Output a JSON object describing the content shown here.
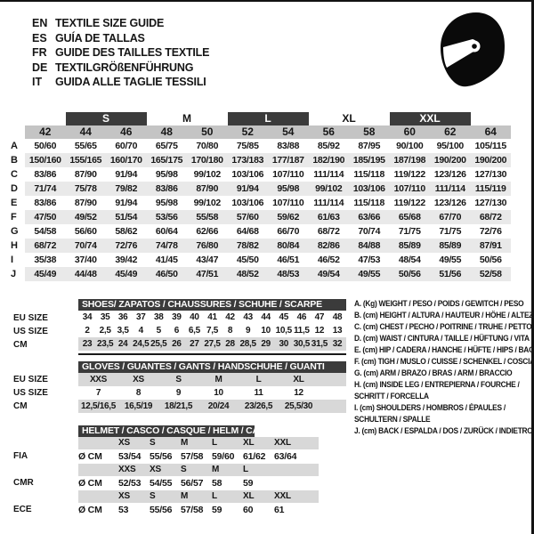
{
  "header": {
    "languages": [
      {
        "code": "EN",
        "title": "TEXTILE SIZE GUIDE"
      },
      {
        "code": "ES",
        "title": "GUÍA DE TALLAS"
      },
      {
        "code": "FR",
        "title": "GUIDE DES TAILLES TEXTILE"
      },
      {
        "code": "DE",
        "title": "TEXTILGRÖßENFÜHRUNG"
      },
      {
        "code": "IT",
        "title": "GUIDA ALLE TAGLIE TESSILI"
      }
    ]
  },
  "main_table": {
    "groups": [
      {
        "label": "S",
        "highlight": true,
        "sizes": [
          "44",
          "46"
        ]
      },
      {
        "label": "M",
        "highlight": false,
        "sizes": [
          "48",
          "50"
        ]
      },
      {
        "label": "L",
        "highlight": true,
        "sizes": [
          "52",
          "54"
        ]
      },
      {
        "label": "XL",
        "highlight": false,
        "sizes": [
          "56",
          "58"
        ]
      },
      {
        "label": "XXL",
        "highlight": true,
        "sizes": [
          "60",
          "62"
        ]
      }
    ],
    "sizes": [
      "42",
      "44",
      "46",
      "48",
      "50",
      "52",
      "54",
      "56",
      "58",
      "60",
      "62",
      "64"
    ],
    "rows": [
      {
        "letter": "A",
        "values": [
          "50/60",
          "55/65",
          "60/70",
          "65/75",
          "70/80",
          "75/85",
          "83/88",
          "85/92",
          "87/95",
          "90/100",
          "95/100",
          "105/115"
        ]
      },
      {
        "letter": "B",
        "values": [
          "150/160",
          "155/165",
          "160/170",
          "165/175",
          "170/180",
          "173/183",
          "177/187",
          "182/190",
          "185/195",
          "187/198",
          "190/200",
          "190/200"
        ]
      },
      {
        "letter": "C",
        "values": [
          "83/86",
          "87/90",
          "91/94",
          "95/98",
          "99/102",
          "103/106",
          "107/110",
          "111/114",
          "115/118",
          "119/122",
          "123/126",
          "127/130"
        ]
      },
      {
        "letter": "D",
        "values": [
          "71/74",
          "75/78",
          "79/82",
          "83/86",
          "87/90",
          "91/94",
          "95/98",
          "99/102",
          "103/106",
          "107/110",
          "111/114",
          "115/119"
        ]
      },
      {
        "letter": "E",
        "values": [
          "83/86",
          "87/90",
          "91/94",
          "95/98",
          "99/102",
          "103/106",
          "107/110",
          "111/114",
          "115/118",
          "119/122",
          "123/126",
          "127/130"
        ]
      },
      {
        "letter": "F",
        "values": [
          "47/50",
          "49/52",
          "51/54",
          "53/56",
          "55/58",
          "57/60",
          "59/62",
          "61/63",
          "63/66",
          "65/68",
          "67/70",
          "68/72"
        ]
      },
      {
        "letter": "G",
        "values": [
          "54/58",
          "56/60",
          "58/62",
          "60/64",
          "62/66",
          "64/68",
          "66/70",
          "68/72",
          "70/74",
          "71/75",
          "71/75",
          "72/76"
        ]
      },
      {
        "letter": "H",
        "values": [
          "68/72",
          "70/74",
          "72/76",
          "74/78",
          "76/80",
          "78/82",
          "80/84",
          "82/86",
          "84/88",
          "85/89",
          "85/89",
          "87/91"
        ]
      },
      {
        "letter": "I",
        "values": [
          "35/38",
          "37/40",
          "39/42",
          "41/45",
          "43/47",
          "45/50",
          "46/51",
          "46/52",
          "47/53",
          "48/54",
          "49/55",
          "50/56"
        ]
      },
      {
        "letter": "J",
        "values": [
          "45/49",
          "44/48",
          "45/49",
          "46/50",
          "47/51",
          "48/52",
          "48/53",
          "49/54",
          "49/55",
          "50/56",
          "51/56",
          "52/58"
        ]
      }
    ]
  },
  "shoes_table": {
    "title": "SHOES/ ZAPATOS / CHAUSSURES / SCHUHE / SCARPE",
    "rows": [
      {
        "label": "EU SIZE",
        "values": [
          "34",
          "35",
          "36",
          "37",
          "38",
          "39",
          "40",
          "41",
          "42",
          "43",
          "44",
          "45",
          "46",
          "47",
          "48"
        ]
      },
      {
        "label": "US SIZE",
        "values": [
          "2",
          "2,5",
          "3,5",
          "4",
          "5",
          "6",
          "6,5",
          "7,5",
          "8",
          "9",
          "10",
          "10,5",
          "11,5",
          "12",
          "13"
        ]
      },
      {
        "label": "CM",
        "values": [
          "23",
          "23,5",
          "24",
          "24,5",
          "25,5",
          "26",
          "27",
          "27,5",
          "28",
          "28,5",
          "29",
          "30",
          "30,5",
          "31,5",
          "32"
        ]
      }
    ]
  },
  "gloves_table": {
    "title": "GLOVES / GUANTES / GANTS / HANDSCHUHE / GUANTI",
    "rows": [
      {
        "label": "EU SIZE",
        "values": [
          "XXS",
          "XS",
          "S",
          "M",
          "L",
          "XL"
        ]
      },
      {
        "label": "US SIZE",
        "values": [
          "7",
          "8",
          "9",
          "10",
          "11",
          "12"
        ]
      },
      {
        "label": "CM",
        "values": [
          "12,5/16,5",
          "16,5/19",
          "18/21,5",
          "20/24",
          "23/26,5",
          "25,5/30"
        ]
      }
    ]
  },
  "helmet_table": {
    "title": "HELMET / CASCO / CASQUE / HELM / CASCO",
    "sections": [
      {
        "label": "FIA",
        "unit": "Ø CM",
        "sizes": [
          "XS",
          "S",
          "M",
          "L",
          "XL",
          "XXL"
        ],
        "values": [
          "53/54",
          "55/56",
          "57/58",
          "59/60",
          "61/62",
          "63/64"
        ]
      },
      {
        "label": "CMR",
        "unit": "Ø CM",
        "sizes": [
          "XXS",
          "XS",
          "S",
          "M",
          "L"
        ],
        "values": [
          "52/53",
          "54/55",
          "56/57",
          "58",
          "59"
        ]
      },
      {
        "label": "ECE",
        "unit": "Ø CM",
        "sizes": [
          "XS",
          "S",
          "M",
          "L",
          "XL",
          "XXL"
        ],
        "values": [
          "53",
          "55/56",
          "57/58",
          "59",
          "60",
          "61"
        ]
      }
    ]
  },
  "legend": {
    "lines": [
      "A. (Kg) WEIGHT / PESO / POIDS / GEWITCH / PESO",
      "B. (cm) HEIGHT / ALTURA / HAUTEUR / HÖHE / ALTEZZA",
      "C. (cm) CHEST / PECHO / POITRINE / TRUHE / PETTO",
      "D. (cm) WAIST / CINTURA / TAILLE / HÜFTUNG / VITA",
      "E. (cm) HIP / CADERA / HANCHE / HÜFTE / HIPS /  BACINO",
      "F. (cm) TIGH / MUSLO / CUISSE / SCHENKEL / COSCIA",
      "G. (cm) ARM  / BRAZO / BRAS / ARM / BRACCIO",
      "H. (cm) INSIDE LEG / ENTREPIERNA / FOURCHE /",
      "SCHRITT / FORCELLA",
      "I. (cm) SHOULDERS / HOMBROS / ÉPAULES /",
      "SCHULTERN / SPALLE",
      "J. (cm) BACK / ESPALDA / DOS / ZURÜCK / INDIETRO"
    ]
  },
  "colors": {
    "dark_bar": "#3b3b3b",
    "header_band": "#c4c4c4",
    "alt_row": "#e9e9e9",
    "section_gray": "#d8d8d8",
    "text": "#161616"
  }
}
